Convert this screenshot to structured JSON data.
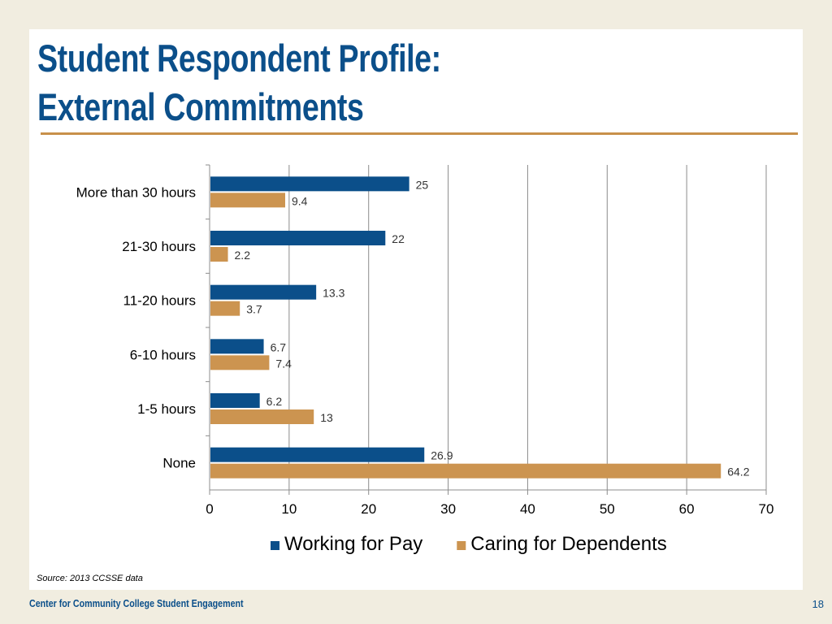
{
  "slide": {
    "title_line1": "Student Respondent Profile:",
    "title_line2": "External Commitments",
    "source": "Source: 2013 CCSSE data",
    "footer_org": "Center for Community College Student Engagement",
    "page_number": "18"
  },
  "colors": {
    "working": "#0b4f8a",
    "caring": "#cc9450",
    "title": "#0b4f8a",
    "rule": "#c8904a"
  },
  "chart_data": {
    "type": "bar",
    "orientation": "horizontal",
    "categories": [
      "More than 30 hours",
      "21-30 hours",
      "11-20 hours",
      "6-10 hours",
      "1-5 hours",
      "None"
    ],
    "series": [
      {
        "name": "Working for Pay",
        "values": [
          25,
          22,
          13.3,
          6.7,
          6.2,
          26.9
        ],
        "labels": [
          "25",
          "22",
          "13.3",
          "6.7",
          "6.2",
          "26.9"
        ]
      },
      {
        "name": "Caring for Dependents",
        "values": [
          9.4,
          2.2,
          3.7,
          7.4,
          13,
          64.2
        ],
        "labels": [
          "9.4",
          "2.2",
          "3.7",
          "7.4",
          "13",
          "64.2"
        ]
      }
    ],
    "xlim": [
      0,
      70
    ],
    "xticks": [
      "0",
      "10",
      "20",
      "30",
      "40",
      "50",
      "60",
      "70"
    ],
    "grid": true,
    "legend": "bottom",
    "title": "",
    "xlabel": "",
    "ylabel": ""
  }
}
